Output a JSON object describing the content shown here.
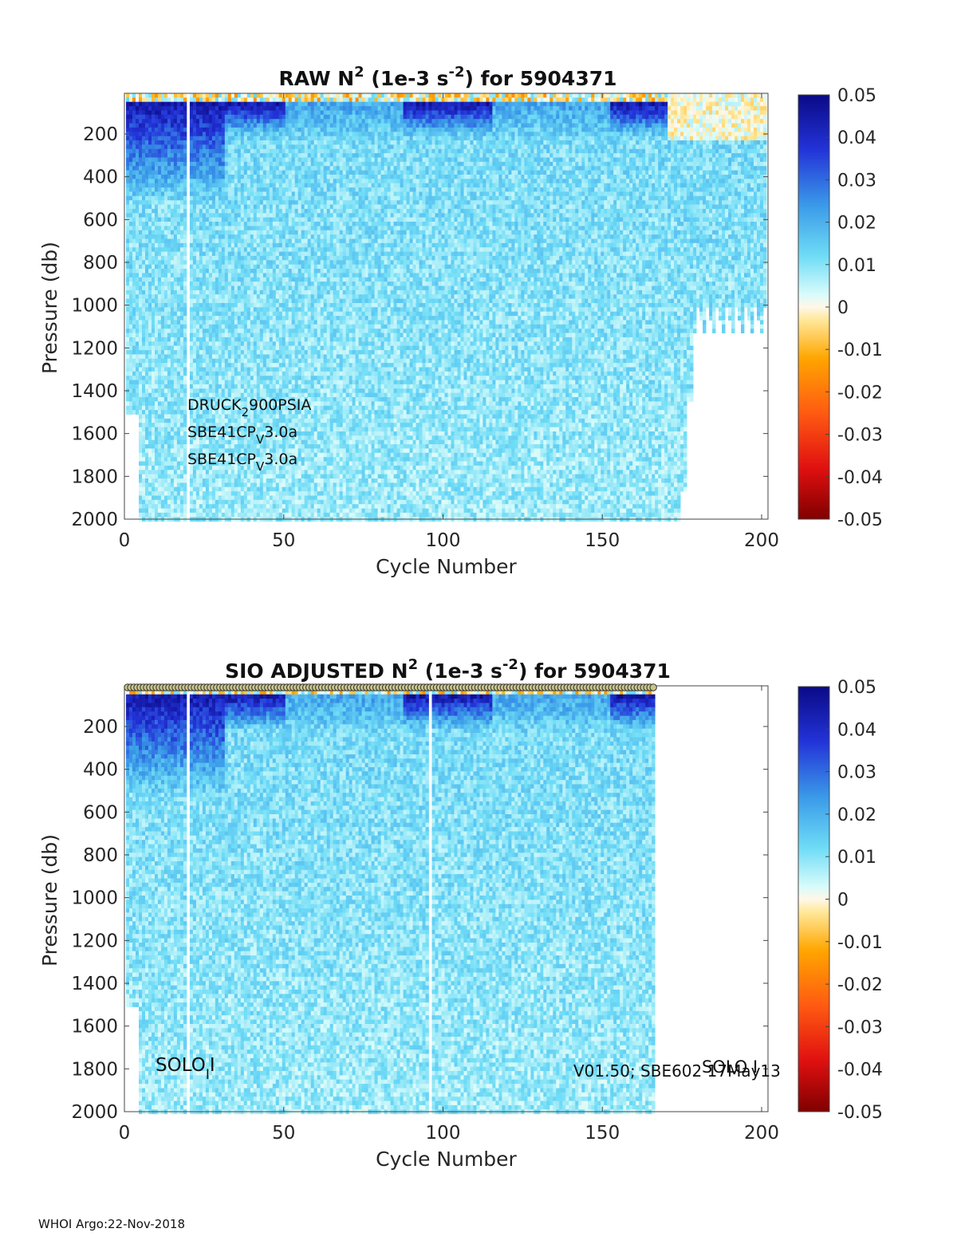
{
  "footer": "WHOI Argo:22-Nov-2018",
  "chart_data": [
    {
      "type": "heatmap",
      "title": {
        "prefix": "RAW N",
        "sup1": "2",
        "mid": " (1e-3 s",
        "sup2": "-2",
        "suffix": ") for 5904371"
      },
      "xlabel": "Cycle Number",
      "ylabel": "Pressure (db)",
      "xlim": [
        0,
        202
      ],
      "ylim": [
        2000,
        10
      ],
      "x_ticks": [
        0,
        50,
        100,
        150,
        200
      ],
      "y_ticks": [
        200,
        400,
        600,
        800,
        1000,
        1200,
        1400,
        1600,
        1800,
        2000
      ],
      "colorbar": {
        "range": [
          -0.05,
          0.05
        ],
        "ticks": [
          "0.05",
          "0.04",
          "0.03",
          "0.02",
          "0.01",
          "0",
          "-0.01",
          "-0.02",
          "-0.03",
          "-0.04",
          "-0.05"
        ],
        "colormap": "jet-like"
      },
      "cycles_with_data": [
        1,
        201
      ],
      "annotations": [
        {
          "base": "DRUCK",
          "sub": "2",
          "rest": "900PSIA"
        },
        {
          "base": "SBE41CP",
          "sub": "V",
          "rest": "3.0a"
        },
        {
          "base": "SBE41CP",
          "sub": "V",
          "rest": "3.0a"
        }
      ],
      "notes": "Strong stratification (N2 ~0.04-0.05) in upper ~400 db near cycles 1-30, values ~0.005-0.015 elsewhere; profiles after cycle ~175 end near 1000-1500 db."
    },
    {
      "type": "heatmap",
      "title": {
        "prefix": "SIO  ADJUSTED N",
        "sup1": "2",
        "mid": " (1e-3 s",
        "sup2": "-2",
        "suffix": ") for 5904371"
      },
      "xlabel": "Cycle Number",
      "ylabel": "Pressure (db)",
      "xlim": [
        0,
        202
      ],
      "ylim": [
        2000,
        10
      ],
      "x_ticks": [
        0,
        50,
        100,
        150,
        200
      ],
      "y_ticks": [
        200,
        400,
        600,
        800,
        1000,
        1200,
        1400,
        1600,
        1800,
        2000
      ],
      "colorbar": {
        "range": [
          -0.05,
          0.05
        ],
        "ticks": [
          "0.05",
          "0.04",
          "0.03",
          "0.02",
          "0.01",
          "0",
          "-0.01",
          "-0.02",
          "-0.03",
          "-0.04",
          "-0.05"
        ],
        "colormap": "jet-like"
      },
      "cycles_with_data": [
        1,
        166
      ],
      "annotations_left": {
        "base": "SOLO",
        "sub": "I",
        "rest": "I"
      },
      "annotations_right": {
        "overlay": "SOLO I",
        "text": "V01.50; SBE602 17May13"
      },
      "notes": "Adjusted data available only through cycle ~166; QC markers drawn along top edge."
    }
  ]
}
